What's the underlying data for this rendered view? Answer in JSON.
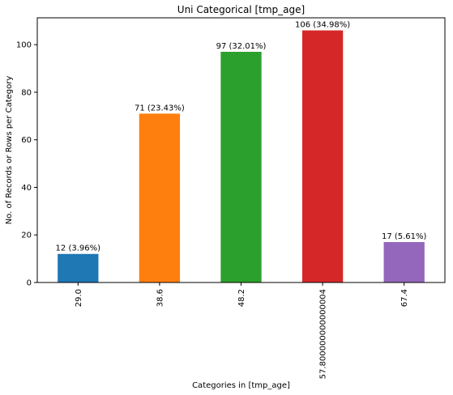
{
  "chart_data": {
    "type": "bar",
    "title": "Uni Categorical [tmp_age]",
    "xlabel": "Categories in [tmp_age]",
    "ylabel": "No. of Records or Rows per Category",
    "categories": [
      "29.0",
      "38.6",
      "48.2",
      "57.800000000000004",
      "67.4"
    ],
    "values": [
      12,
      71,
      97,
      106,
      17
    ],
    "bar_labels": [
      "12 (3.96%)",
      "71 (23.43%)",
      "97 (32.01%)",
      "106 (34.98%)",
      "17 (5.61%)"
    ],
    "colors": [
      "#1f77b4",
      "#ff7f0e",
      "#2ca02c",
      "#d62728",
      "#9467bd"
    ],
    "yticks": [
      0,
      20,
      40,
      60,
      80,
      100
    ],
    "ylim": [
      0,
      111.3
    ],
    "grid": false,
    "legend": "none"
  }
}
